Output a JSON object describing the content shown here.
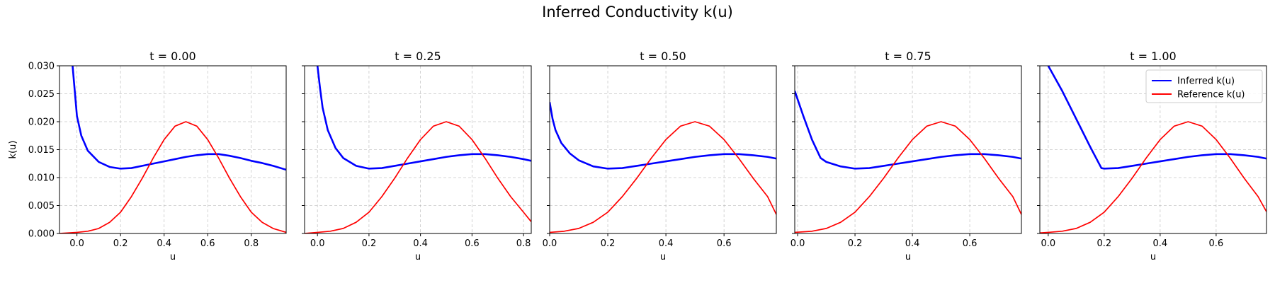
{
  "figure": {
    "title": "Inferred Conductivity k(u)"
  },
  "chart_data": [
    {
      "type": "line",
      "title": "t = 0.00",
      "xlabel": "u",
      "ylabel": "k(u)",
      "xlim": [
        -0.08,
        0.96
      ],
      "ylim": [
        0,
        0.03
      ],
      "xticks": [
        0.0,
        0.2,
        0.4,
        0.6,
        0.8
      ],
      "xtick_labels": [
        "0.0",
        "0.2",
        "0.4",
        "0.6",
        "0.8"
      ],
      "yticks": [
        0.0,
        0.005,
        0.01,
        0.015,
        0.02,
        0.025,
        0.03
      ],
      "ytick_labels": [
        "0.000",
        "0.005",
        "0.010",
        "0.015",
        "0.020",
        "0.025",
        "0.030"
      ],
      "grid": true,
      "series": [
        {
          "name": "Inferred k(u)",
          "color": "#0000ff",
          "x": [
            -0.02,
            -0.01,
            0.0,
            0.02,
            0.05,
            0.1,
            0.15,
            0.2,
            0.25,
            0.3,
            0.35,
            0.4,
            0.45,
            0.5,
            0.55,
            0.6,
            0.65,
            0.7,
            0.75,
            0.8,
            0.85,
            0.9,
            0.96
          ],
          "y": [
            0.03,
            0.0255,
            0.021,
            0.0175,
            0.0148,
            0.0128,
            0.0119,
            0.0116,
            0.0117,
            0.0121,
            0.0125,
            0.0129,
            0.0133,
            0.0137,
            0.014,
            0.0142,
            0.0142,
            0.0139,
            0.0135,
            0.013,
            0.0126,
            0.0121,
            0.0114
          ]
        },
        {
          "name": "Reference k(u)",
          "color": "#ff0000",
          "x": [
            -0.08,
            0.0,
            0.05,
            0.1,
            0.15,
            0.2,
            0.25,
            0.3,
            0.35,
            0.4,
            0.45,
            0.5,
            0.55,
            0.6,
            0.65,
            0.7,
            0.75,
            0.8,
            0.85,
            0.9,
            0.96
          ],
          "y": [
            0.0,
            0.0002,
            0.0004,
            0.0009,
            0.002,
            0.0038,
            0.0066,
            0.0099,
            0.0135,
            0.0168,
            0.0192,
            0.02,
            0.0192,
            0.0168,
            0.0135,
            0.0099,
            0.0066,
            0.0038,
            0.002,
            0.0009,
            0.0002
          ]
        }
      ]
    },
    {
      "type": "line",
      "title": "t = 0.25",
      "xlabel": "u",
      "ylabel": "",
      "xlim": [
        -0.05,
        0.83
      ],
      "ylim": [
        0,
        0.03
      ],
      "xticks": [
        0.0,
        0.2,
        0.4,
        0.6,
        0.8
      ],
      "xtick_labels": [
        "0.0",
        "0.2",
        "0.4",
        "0.6",
        "0.8"
      ],
      "yticks": [
        0.0,
        0.005,
        0.01,
        0.015,
        0.02,
        0.025,
        0.03
      ],
      "ytick_labels": [],
      "grid": true,
      "series": [
        {
          "name": "Inferred k(u)",
          "color": "#0000ff",
          "x": [
            0.0,
            0.01,
            0.02,
            0.04,
            0.07,
            0.1,
            0.15,
            0.2,
            0.25,
            0.3,
            0.35,
            0.4,
            0.45,
            0.5,
            0.55,
            0.6,
            0.65,
            0.7,
            0.75,
            0.8,
            0.83
          ],
          "y": [
            0.03,
            0.026,
            0.0225,
            0.0185,
            0.0153,
            0.0135,
            0.0121,
            0.0116,
            0.0117,
            0.0121,
            0.0125,
            0.0129,
            0.0133,
            0.0137,
            0.014,
            0.0142,
            0.0142,
            0.014,
            0.0137,
            0.0133,
            0.013
          ]
        },
        {
          "name": "Reference k(u)",
          "color": "#ff0000",
          "x": [
            -0.05,
            0.0,
            0.05,
            0.1,
            0.15,
            0.2,
            0.25,
            0.3,
            0.35,
            0.4,
            0.45,
            0.5,
            0.55,
            0.6,
            0.65,
            0.7,
            0.75,
            0.8,
            0.83
          ],
          "y": [
            0.0,
            0.0002,
            0.0004,
            0.0009,
            0.002,
            0.0038,
            0.0066,
            0.0099,
            0.0135,
            0.0168,
            0.0192,
            0.02,
            0.0192,
            0.0168,
            0.0135,
            0.0099,
            0.0066,
            0.0038,
            0.0021
          ]
        }
      ]
    },
    {
      "type": "line",
      "title": "t = 0.50",
      "xlabel": "u",
      "ylabel": "",
      "xlim": [
        0.0,
        0.78
      ],
      "ylim": [
        0,
        0.03
      ],
      "xticks": [
        0.0,
        0.2,
        0.4,
        0.6
      ],
      "xtick_labels": [
        "0.0",
        "0.2",
        "0.4",
        "0.6"
      ],
      "yticks": [
        0.0,
        0.005,
        0.01,
        0.015,
        0.02,
        0.025,
        0.03
      ],
      "ytick_labels": [],
      "grid": true,
      "series": [
        {
          "name": "Inferred k(u)",
          "color": "#0000ff",
          "x": [
            0.0,
            0.01,
            0.02,
            0.04,
            0.07,
            0.1,
            0.15,
            0.2,
            0.25,
            0.3,
            0.35,
            0.4,
            0.45,
            0.5,
            0.55,
            0.6,
            0.65,
            0.7,
            0.75,
            0.78
          ],
          "y": [
            0.0235,
            0.0205,
            0.0185,
            0.0162,
            0.0143,
            0.0131,
            0.012,
            0.0116,
            0.0117,
            0.0121,
            0.0125,
            0.0129,
            0.0133,
            0.0137,
            0.014,
            0.0142,
            0.0142,
            0.014,
            0.0137,
            0.0134
          ]
        },
        {
          "name": "Reference k(u)",
          "color": "#ff0000",
          "x": [
            0.0,
            0.05,
            0.1,
            0.15,
            0.2,
            0.25,
            0.3,
            0.35,
            0.4,
            0.45,
            0.5,
            0.55,
            0.6,
            0.65,
            0.7,
            0.75,
            0.78
          ],
          "y": [
            0.0002,
            0.0004,
            0.0009,
            0.002,
            0.0038,
            0.0066,
            0.0099,
            0.0135,
            0.0168,
            0.0192,
            0.02,
            0.0192,
            0.0168,
            0.0135,
            0.0099,
            0.0066,
            0.0034
          ]
        }
      ]
    },
    {
      "type": "line",
      "title": "t = 0.75",
      "xlabel": "u",
      "ylabel": "",
      "xlim": [
        -0.01,
        0.78
      ],
      "ylim": [
        0,
        0.03
      ],
      "xticks": [
        0.0,
        0.2,
        0.4,
        0.6
      ],
      "xtick_labels": [
        "0.0",
        "0.2",
        "0.4",
        "0.6"
      ],
      "yticks": [
        0.0,
        0.005,
        0.01,
        0.015,
        0.02,
        0.025,
        0.03
      ],
      "ytick_labels": [],
      "grid": true,
      "series": [
        {
          "name": "Inferred k(u)",
          "color": "#0000ff",
          "x": [
            -0.01,
            0.02,
            0.05,
            0.08,
            0.1,
            0.15,
            0.2,
            0.25,
            0.3,
            0.35,
            0.4,
            0.45,
            0.5,
            0.55,
            0.6,
            0.65,
            0.7,
            0.75,
            0.78
          ],
          "y": [
            0.0255,
            0.021,
            0.0168,
            0.0135,
            0.0128,
            0.012,
            0.0116,
            0.0117,
            0.0121,
            0.0125,
            0.0129,
            0.0133,
            0.0137,
            0.014,
            0.0142,
            0.0142,
            0.014,
            0.0137,
            0.0134
          ]
        },
        {
          "name": "Reference k(u)",
          "color": "#ff0000",
          "x": [
            -0.01,
            0.05,
            0.1,
            0.15,
            0.2,
            0.25,
            0.3,
            0.35,
            0.4,
            0.45,
            0.5,
            0.55,
            0.6,
            0.65,
            0.7,
            0.75,
            0.78
          ],
          "y": [
            0.0002,
            0.0004,
            0.0009,
            0.002,
            0.0038,
            0.0066,
            0.0099,
            0.0135,
            0.0168,
            0.0192,
            0.02,
            0.0192,
            0.0168,
            0.0135,
            0.0099,
            0.0066,
            0.0034
          ]
        }
      ]
    },
    {
      "type": "line",
      "title": "t = 1.00",
      "xlabel": "u",
      "ylabel": "",
      "xlim": [
        -0.03,
        0.78
      ],
      "ylim": [
        0,
        0.03
      ],
      "xticks": [
        0.0,
        0.2,
        0.4,
        0.6
      ],
      "xtick_labels": [
        "0.0",
        "0.2",
        "0.4",
        "0.6"
      ],
      "yticks": [
        0.0,
        0.005,
        0.01,
        0.015,
        0.02,
        0.025,
        0.03
      ],
      "ytick_labels": [],
      "grid": true,
      "legend": {
        "position": "upper right",
        "entries": [
          "Inferred k(u)",
          "Reference k(u)"
        ]
      },
      "series": [
        {
          "name": "Inferred k(u)",
          "color": "#0000ff",
          "x": [
            0.0,
            0.05,
            0.1,
            0.15,
            0.19,
            0.2,
            0.25,
            0.3,
            0.35,
            0.4,
            0.45,
            0.5,
            0.55,
            0.6,
            0.65,
            0.7,
            0.75,
            0.78
          ],
          "y": [
            0.03,
            0.0255,
            0.0205,
            0.0155,
            0.0117,
            0.0116,
            0.0117,
            0.0121,
            0.0125,
            0.0129,
            0.0133,
            0.0137,
            0.014,
            0.0142,
            0.0142,
            0.014,
            0.0137,
            0.0134
          ]
        },
        {
          "name": "Reference k(u)",
          "color": "#ff0000",
          "x": [
            -0.03,
            0.0,
            0.05,
            0.1,
            0.15,
            0.2,
            0.25,
            0.3,
            0.35,
            0.4,
            0.45,
            0.5,
            0.55,
            0.6,
            0.65,
            0.7,
            0.75,
            0.78
          ],
          "y": [
            0.0001,
            0.0002,
            0.0004,
            0.0009,
            0.002,
            0.0038,
            0.0066,
            0.0099,
            0.0135,
            0.0168,
            0.0192,
            0.02,
            0.0192,
            0.0168,
            0.0135,
            0.0099,
            0.0066,
            0.0039
          ]
        }
      ]
    }
  ]
}
